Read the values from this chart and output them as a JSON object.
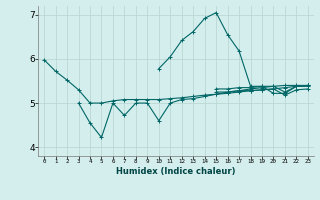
{
  "xlabel": "Humidex (Indice chaleur)",
  "xlim": [
    -0.5,
    23.5
  ],
  "ylim": [
    3.8,
    7.2
  ],
  "yticks": [
    4,
    5,
    6,
    7
  ],
  "xticks": [
    0,
    1,
    2,
    3,
    4,
    5,
    6,
    7,
    8,
    9,
    10,
    11,
    12,
    13,
    14,
    15,
    16,
    17,
    18,
    19,
    20,
    21,
    22,
    23
  ],
  "bg_color": "#d4eeed",
  "grid_color": "#bcd8d5",
  "line_color": "#006666",
  "series": [
    {
      "x": [
        0,
        1,
        2,
        3,
        4,
        5,
        6,
        7,
        8,
        9,
        10,
        11,
        12,
        13,
        14,
        15,
        16,
        17,
        18,
        19,
        20,
        21,
        22,
        23
      ],
      "y": [
        5.98,
        5.72,
        5.52,
        5.3,
        5.0,
        5.0,
        5.05,
        5.08,
        5.08,
        5.08,
        5.08,
        5.1,
        5.12,
        5.15,
        5.18,
        5.2,
        5.22,
        5.25,
        5.28,
        5.3,
        5.32,
        5.35,
        5.38,
        5.4
      ]
    },
    {
      "x": [
        3,
        4,
        5,
        6,
        7,
        8,
        9,
        10,
        11,
        12,
        13,
        14,
        15,
        16,
        17,
        18,
        19,
        20,
        21,
        22,
        23
      ],
      "y": [
        5.0,
        4.55,
        4.22,
        5.0,
        4.72,
        5.0,
        5.0,
        4.6,
        5.0,
        5.08,
        5.1,
        5.15,
        5.2,
        5.25,
        5.28,
        5.32,
        5.35,
        5.38,
        5.4,
        5.4,
        5.4
      ]
    },
    {
      "x": [
        10,
        11,
        12,
        13,
        14,
        15,
        16,
        17,
        18,
        19,
        20,
        21,
        22,
        23
      ],
      "y": [
        5.78,
        6.05,
        6.42,
        6.62,
        6.92,
        7.05,
        6.55,
        6.18,
        5.38,
        5.38,
        5.22,
        5.22,
        5.38,
        5.38
      ]
    },
    {
      "x": [
        15,
        16,
        17,
        18,
        19,
        20,
        21,
        22,
        23
      ],
      "y": [
        5.32,
        5.32,
        5.35,
        5.35,
        5.38,
        5.38,
        5.25,
        5.38,
        5.4
      ]
    },
    {
      "x": [
        15,
        16,
        17,
        18,
        19,
        20,
        21,
        22,
        23
      ],
      "y": [
        5.25,
        5.25,
        5.28,
        5.28,
        5.3,
        5.32,
        5.18,
        5.3,
        5.32
      ]
    }
  ]
}
